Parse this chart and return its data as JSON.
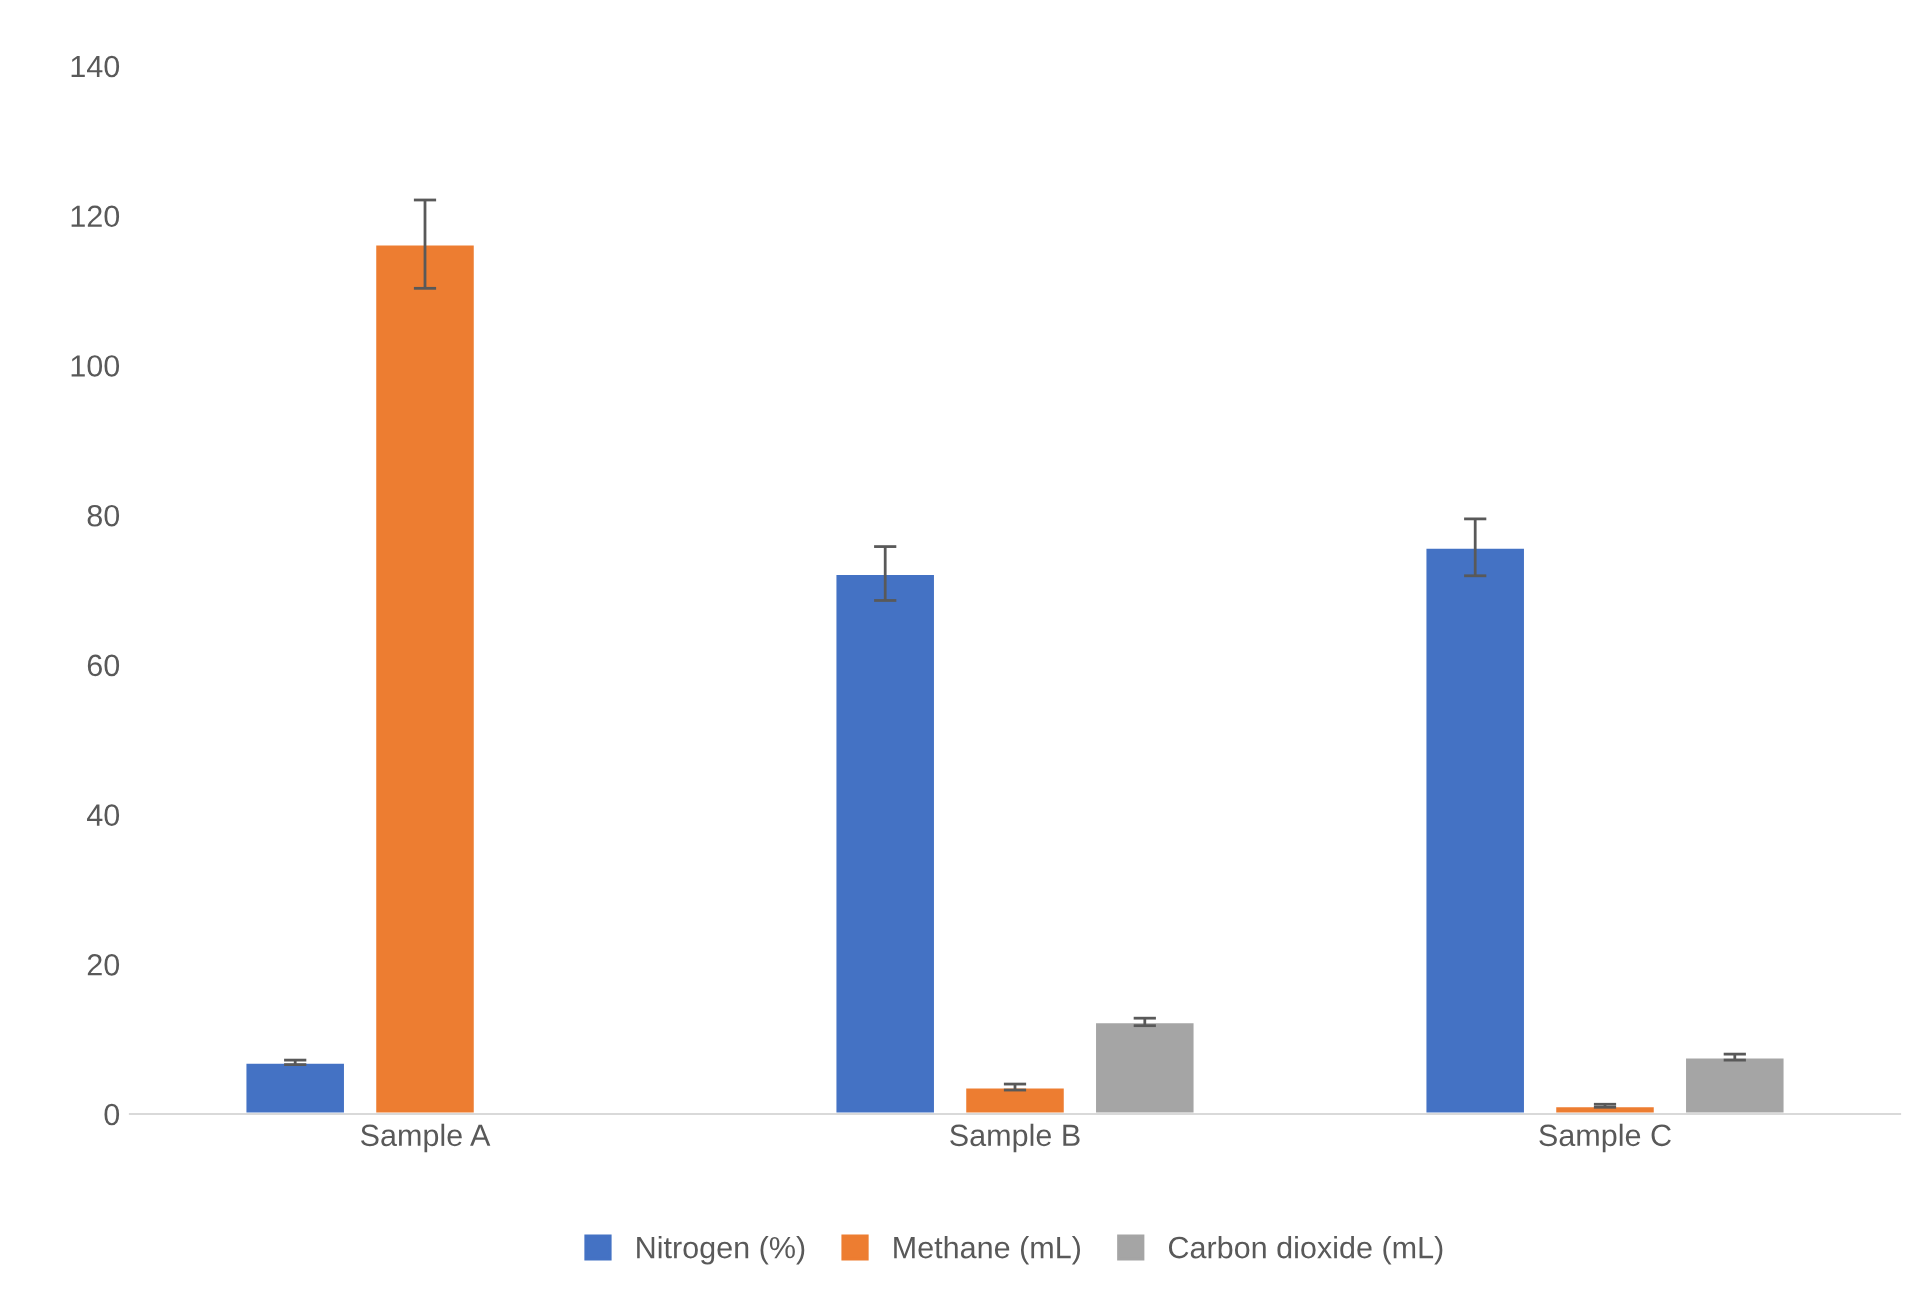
{
  "chart_data": {
    "type": "bar",
    "categories": [
      "Sample A",
      "Sample B",
      "Sample C"
    ],
    "series": [
      {
        "name": "Nitrogen (%)",
        "color": "#4472c4",
        "values": [
          6.9,
          72.2,
          75.7
        ],
        "errors": [
          0.3,
          3.6,
          3.8
        ]
      },
      {
        "name": "Methane (mL)",
        "color": "#ed7d31",
        "values": [
          116.2,
          3.6,
          1.1
        ],
        "errors": [
          5.9,
          0.4,
          0.2
        ]
      },
      {
        "name": "Carbon dioxide (mL)",
        "color": "#a5a5a5",
        "values": [
          null,
          12.3,
          7.6
        ],
        "errors": [
          null,
          0.5,
          0.4
        ]
      }
    ],
    "ylim": [
      0,
      140
    ],
    "yticks": [
      0,
      20,
      40,
      60,
      80,
      100,
      120,
      140
    ],
    "grid": false,
    "legend": "bottom"
  }
}
